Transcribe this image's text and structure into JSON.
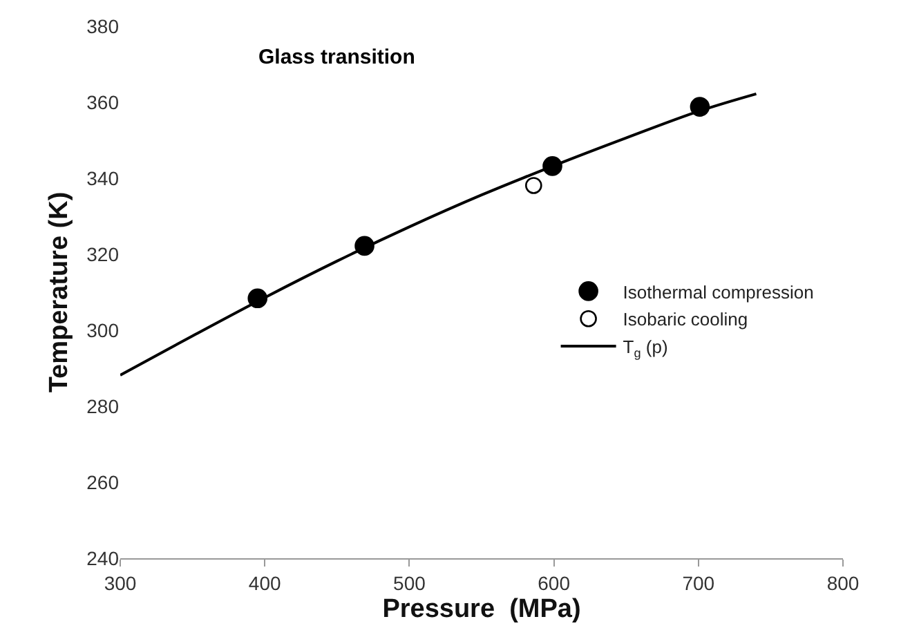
{
  "chart_data": {
    "type": "scatter",
    "title": "Glass transition",
    "xlabel": "Pressure  (MPa)",
    "ylabel": "Temperature (K)",
    "xlim": [
      300,
      800
    ],
    "xticks": [
      300,
      400,
      500,
      600,
      700,
      800
    ],
    "ylim": [
      240,
      380
    ],
    "yticks": [
      240,
      260,
      280,
      300,
      320,
      340,
      360,
      380
    ],
    "grid": false,
    "legend": "right",
    "series": [
      {
        "name": "Isothermal compression",
        "marker": "circle",
        "color": "#000000",
        "x": [
          395,
          469,
          599,
          701
        ],
        "values": [
          308.4,
          322.2,
          343.2,
          358.8
        ]
      },
      {
        "name": "Isobaric cooling",
        "marker": "circle-open",
        "color": "#000000",
        "x": [
          586
        ],
        "values": [
          338.1
        ]
      },
      {
        "name": "T$_{g}$ (p)",
        "type": "line",
        "marker": "none",
        "color": "#000000",
        "x": [
          300,
          350,
          400,
          450,
          500,
          550,
          600,
          650,
          700,
          740
        ],
        "values": [
          288.2,
          298.5,
          308.6,
          318.2,
          327.2,
          335.6,
          343.3,
          350.6,
          357.6,
          362.2
        ]
      }
    ]
  }
}
